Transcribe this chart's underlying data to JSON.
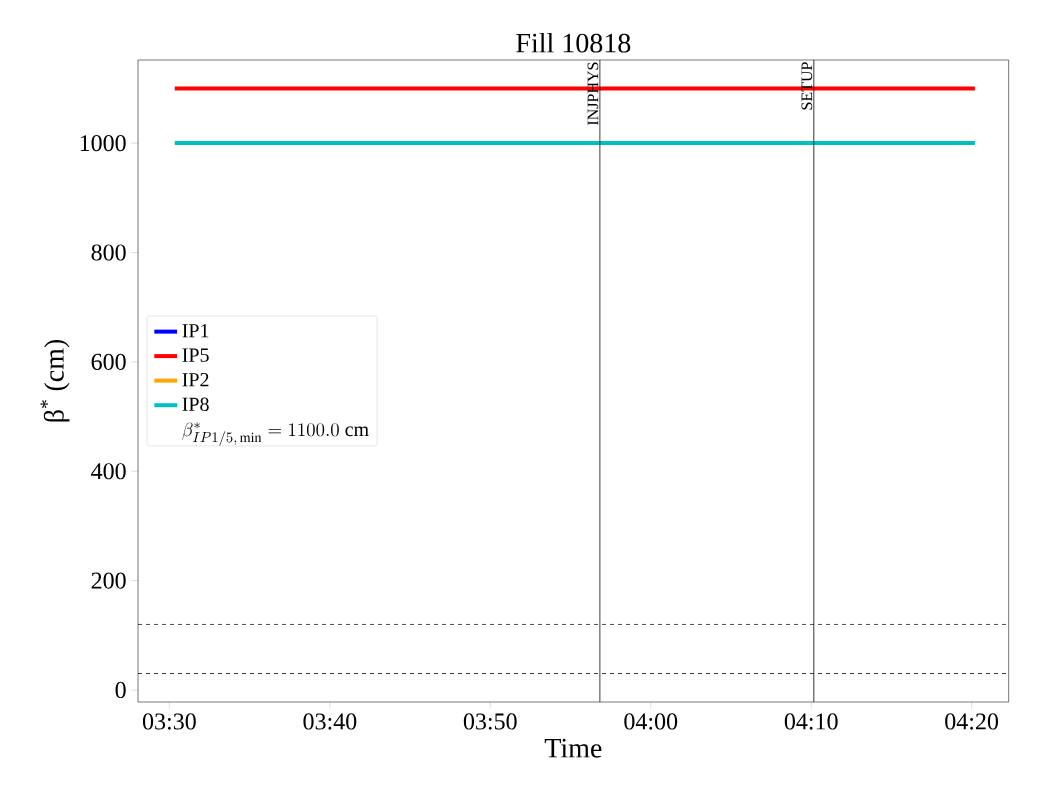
{
  "chart_data": {
    "type": "line",
    "title": "Fill 10818",
    "xlabel": "Time",
    "ylabel": "β$^{*}$ (cm)",
    "x": [
      3.5056,
      4.3367
    ],
    "series": [
      {
        "name": "IP1",
        "color": "#0000ff",
        "values": [
          null,
          null
        ]
      },
      {
        "name": "IP5",
        "color": "#ff0000",
        "values": [
          1100,
          1100
        ]
      },
      {
        "name": "IP2",
        "color": "#ffa500",
        "values": [
          null,
          null
        ]
      },
      {
        "name": "IP8",
        "color": "#00bfbf",
        "values": [
          1000,
          1000
        ]
      }
    ],
    "annotations": [
      "\\beta^{*}_{IP1/5,\\,\\min} = 1100.0\\ \\mathrm{cm}"
    ],
    "xlim": [
      3.4674,
      4.3718
    ],
    "ylim": [
      -22,
      1152
    ],
    "xticks": [
      {
        "value": 3.5,
        "label": "03:30"
      },
      {
        "value": 3.6667,
        "label": "03:40"
      },
      {
        "value": 3.8333,
        "label": "03:50"
      },
      {
        "value": 4.0,
        "label": "04:00"
      },
      {
        "value": 4.1667,
        "label": "04:10"
      },
      {
        "value": 4.3333,
        "label": "04:20"
      }
    ],
    "yticks": [
      0,
      200,
      400,
      600,
      800,
      1000
    ],
    "ref_lines": [
      {
        "axis": "x",
        "value": 3.9472,
        "label": "INJPHYS",
        "color": "#000000",
        "line_style": "solid"
      },
      {
        "axis": "x",
        "value": 4.1694,
        "label": "SETUP",
        "color": "#000000",
        "line_style": "solid"
      },
      {
        "axis": "y",
        "value": 120,
        "color": "#000000",
        "line_style": "dashed"
      },
      {
        "axis": "y",
        "value": 30,
        "color": "#000000",
        "line_style": "dashed"
      }
    ],
    "grid": false,
    "legend": "left",
    "line_style": "solid",
    "marker": "none"
  }
}
